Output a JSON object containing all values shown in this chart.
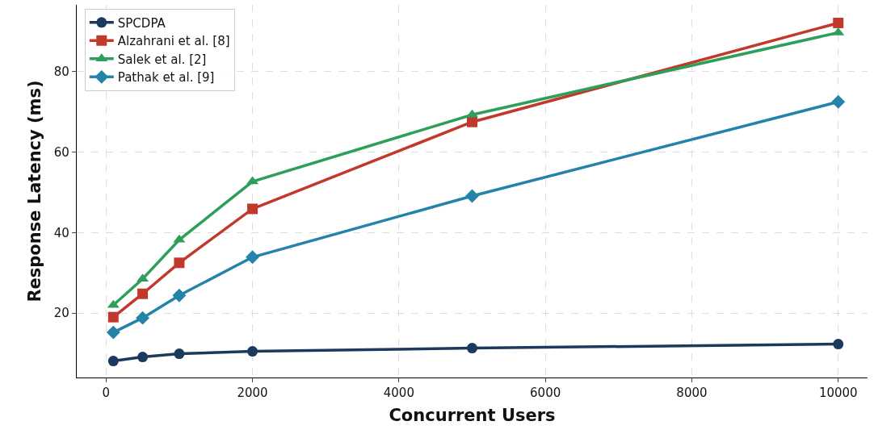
{
  "chart_data": {
    "type": "line",
    "xlabel": "Concurrent Users",
    "ylabel": "Response Latency (ms)",
    "x": [
      100,
      500,
      1000,
      2000,
      5000,
      10000
    ],
    "series": [
      {
        "name": "SPCDPA",
        "color": "#1c3a5e",
        "marker": "circle",
        "values": [
          8.1,
          9.1,
          9.9,
          10.5,
          11.3,
          12.3
        ]
      },
      {
        "name": "Alzahrani et al. [8]",
        "color": "#c0392b",
        "marker": "square",
        "values": [
          19.0,
          24.8,
          32.5,
          45.9,
          67.5,
          92.1
        ]
      },
      {
        "name": "Salek et al. [2]",
        "color": "#2e9e5b",
        "marker": "triangle",
        "values": [
          22.0,
          28.5,
          38.2,
          52.7,
          69.3,
          89.7
        ]
      },
      {
        "name": "Pathak et al. [9]",
        "color": "#2383a8",
        "marker": "diamond",
        "values": [
          15.2,
          18.8,
          24.4,
          33.9,
          49.1,
          72.5
        ]
      }
    ],
    "xlim": [
      -400,
      10400
    ],
    "xticks": [
      0,
      2000,
      4000,
      6000,
      8000,
      10000
    ],
    "ylim": [
      4,
      96.6
    ],
    "yticks": [
      20,
      40,
      60,
      80
    ],
    "grid": true,
    "legend": "top left",
    "line_style": "solid"
  }
}
